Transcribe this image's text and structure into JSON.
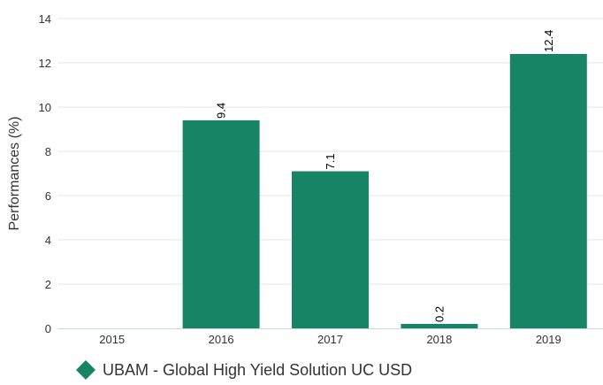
{
  "chart_data": {
    "type": "bar",
    "categories": [
      "2015",
      "2016",
      "2017",
      "2018",
      "2019"
    ],
    "values": [
      null,
      9.4,
      7.1,
      0.2,
      12.4
    ],
    "data_labels": [
      "",
      "9.4",
      "7.1",
      "0.2",
      "12.4"
    ],
    "ylabel": "Performances (%)",
    "xlabel": "",
    "ylim": [
      0,
      14
    ],
    "yticks": [
      0,
      2,
      4,
      6,
      8,
      10,
      12,
      14
    ],
    "grid": true,
    "legend": {
      "position": "bottom-left",
      "entries": [
        {
          "name": "UBAM - Global High Yield Solution UC USD",
          "color": "#178565",
          "marker": "diamond"
        }
      ]
    },
    "colors": {
      "bar": "#178565",
      "grid": "#e6e6e6",
      "axis": "#ccd6eb",
      "text": "#333333"
    }
  }
}
